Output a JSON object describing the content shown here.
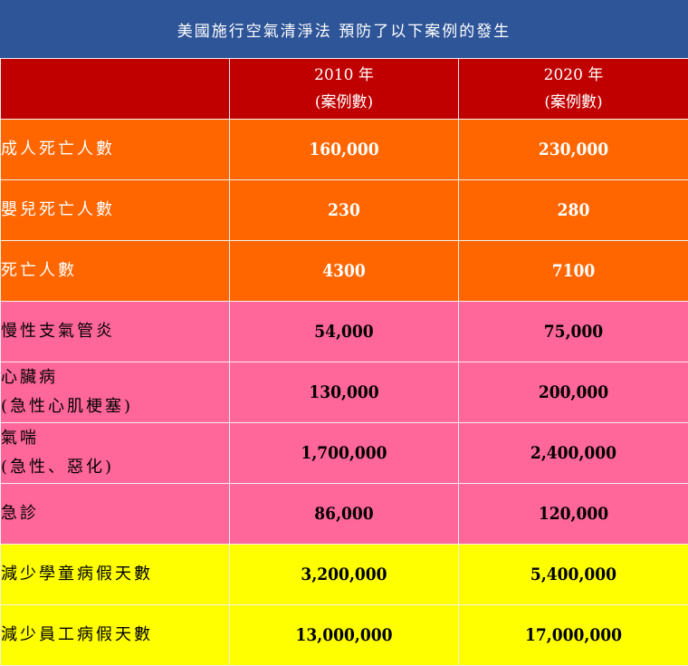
{
  "title": "美國施行空氣清淨法 預防了以下案例的發生",
  "header": {
    "col1": "",
    "col2_line1": "2010 年",
    "col2_line2": "(案例數)",
    "col3_line1": "2020 年",
    "col3_line2": "(案例數)"
  },
  "rows": [
    {
      "label_line1": "成人死亡人數",
      "label_line2": "",
      "v2010": "160,000",
      "v2020": "230,000",
      "group": "orange"
    },
    {
      "label_line1": "嬰兒死亡人數",
      "label_line2": "",
      "v2010": "230",
      "v2020": "280",
      "group": "orange"
    },
    {
      "label_line1": "死亡人數",
      "label_line2": "",
      "v2010": "4300",
      "v2020": "7100",
      "group": "orange"
    },
    {
      "label_line1": "慢性支氣管炎",
      "label_line2": "",
      "v2010": "54,000",
      "v2020": "75,000",
      "group": "pink"
    },
    {
      "label_line1": "心臟病",
      "label_line2": "(急性心肌梗塞)",
      "v2010": "130,000",
      "v2020": "200,000",
      "group": "pink"
    },
    {
      "label_line1": "氣喘",
      "label_line2": "(急性、惡化)",
      "v2010": "1,700,000",
      "v2020": "2,400,000",
      "group": "pink"
    },
    {
      "label_line1": "急診",
      "label_line2": "",
      "v2010": "86,000",
      "v2020": "120,000",
      "group": "pink"
    },
    {
      "label_line1": "減少學童病假天數",
      "label_line2": "",
      "v2010": "3,200,000",
      "v2020": "5,400,000",
      "group": "yellow"
    },
    {
      "label_line1": "減少員工病假天數",
      "label_line2": "",
      "v2010": "13,000,000",
      "v2020": "17,000,000",
      "group": "yellow"
    }
  ],
  "colors": {
    "title_bg": "#2e5598",
    "header_bg": "#c00000",
    "orange": "#ff6600",
    "pink": "#ff6699",
    "yellow": "#ffff00"
  }
}
